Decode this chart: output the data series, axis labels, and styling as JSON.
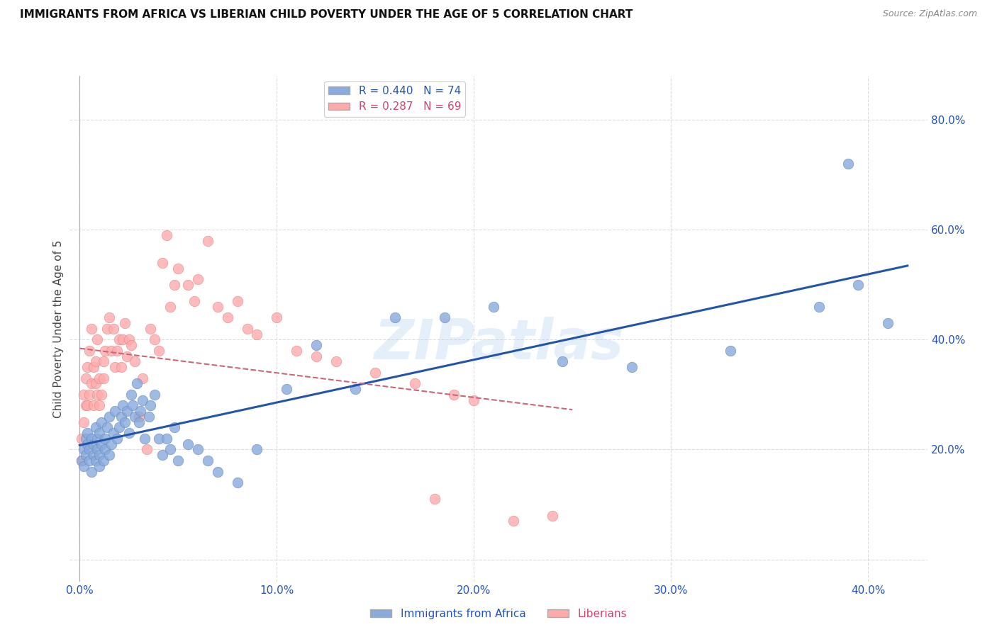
{
  "title": "IMMIGRANTS FROM AFRICA VS LIBERIAN CHILD POVERTY UNDER THE AGE OF 5 CORRELATION CHART",
  "source": "Source: ZipAtlas.com",
  "ylabel": "Child Poverty Under the Age of 5",
  "y_ticks": [
    0.0,
    0.2,
    0.4,
    0.6,
    0.8
  ],
  "y_tick_labels": [
    "",
    "20.0%",
    "40.0%",
    "60.0%",
    "80.0%"
  ],
  "x_ticks": [
    0.0,
    0.1,
    0.2,
    0.3,
    0.4
  ],
  "x_tick_labels": [
    "0.0%",
    "10.0%",
    "20.0%",
    "30.0%",
    "40.0%"
  ],
  "xlim": [
    -0.005,
    0.43
  ],
  "ylim": [
    -0.04,
    0.88
  ],
  "blue_color": "#88AADD",
  "blue_edge": "#6688BB",
  "pink_color": "#FFAAAA",
  "pink_edge": "#DD8888",
  "line_blue": "#2255AA",
  "line_pink": "#CC6677",
  "legend_label_blue": "Immigrants from Africa",
  "legend_label_pink": "Liberians",
  "R_blue": 0.44,
  "N_blue": 74,
  "R_pink": 0.287,
  "N_pink": 69,
  "blue_x": [
    0.001,
    0.002,
    0.002,
    0.003,
    0.003,
    0.004,
    0.004,
    0.005,
    0.005,
    0.006,
    0.006,
    0.007,
    0.007,
    0.008,
    0.008,
    0.009,
    0.009,
    0.01,
    0.01,
    0.01,
    0.011,
    0.011,
    0.012,
    0.013,
    0.013,
    0.014,
    0.015,
    0.015,
    0.016,
    0.017,
    0.018,
    0.019,
    0.02,
    0.021,
    0.022,
    0.023,
    0.024,
    0.025,
    0.026,
    0.027,
    0.028,
    0.029,
    0.03,
    0.031,
    0.032,
    0.033,
    0.035,
    0.036,
    0.038,
    0.04,
    0.042,
    0.044,
    0.046,
    0.048,
    0.05,
    0.055,
    0.06,
    0.065,
    0.07,
    0.08,
    0.09,
    0.105,
    0.12,
    0.14,
    0.16,
    0.185,
    0.21,
    0.245,
    0.28,
    0.33,
    0.375,
    0.395,
    0.41,
    0.39
  ],
  "blue_y": [
    0.18,
    0.2,
    0.17,
    0.22,
    0.19,
    0.21,
    0.23,
    0.18,
    0.2,
    0.22,
    0.16,
    0.19,
    0.21,
    0.24,
    0.18,
    0.2,
    0.22,
    0.17,
    0.19,
    0.23,
    0.21,
    0.25,
    0.18,
    0.2,
    0.22,
    0.24,
    0.19,
    0.26,
    0.21,
    0.23,
    0.27,
    0.22,
    0.24,
    0.26,
    0.28,
    0.25,
    0.27,
    0.23,
    0.3,
    0.28,
    0.26,
    0.32,
    0.25,
    0.27,
    0.29,
    0.22,
    0.26,
    0.28,
    0.3,
    0.22,
    0.19,
    0.22,
    0.2,
    0.24,
    0.18,
    0.21,
    0.2,
    0.18,
    0.16,
    0.14,
    0.2,
    0.31,
    0.39,
    0.31,
    0.44,
    0.44,
    0.46,
    0.36,
    0.35,
    0.38,
    0.46,
    0.5,
    0.43,
    0.72
  ],
  "pink_x": [
    0.001,
    0.001,
    0.002,
    0.002,
    0.003,
    0.003,
    0.004,
    0.004,
    0.005,
    0.005,
    0.006,
    0.006,
    0.007,
    0.007,
    0.008,
    0.008,
    0.009,
    0.009,
    0.01,
    0.01,
    0.011,
    0.012,
    0.012,
    0.013,
    0.014,
    0.015,
    0.016,
    0.017,
    0.018,
    0.019,
    0.02,
    0.021,
    0.022,
    0.023,
    0.024,
    0.025,
    0.026,
    0.028,
    0.03,
    0.032,
    0.034,
    0.036,
    0.038,
    0.04,
    0.042,
    0.044,
    0.046,
    0.048,
    0.05,
    0.055,
    0.058,
    0.06,
    0.065,
    0.07,
    0.075,
    0.08,
    0.085,
    0.09,
    0.1,
    0.11,
    0.12,
    0.13,
    0.15,
    0.17,
    0.19,
    0.2,
    0.22,
    0.24,
    0.18
  ],
  "pink_y": [
    0.22,
    0.18,
    0.25,
    0.3,
    0.28,
    0.33,
    0.35,
    0.28,
    0.38,
    0.3,
    0.32,
    0.42,
    0.35,
    0.28,
    0.36,
    0.32,
    0.3,
    0.4,
    0.33,
    0.28,
    0.3,
    0.36,
    0.33,
    0.38,
    0.42,
    0.44,
    0.38,
    0.42,
    0.35,
    0.38,
    0.4,
    0.35,
    0.4,
    0.43,
    0.37,
    0.4,
    0.39,
    0.36,
    0.26,
    0.33,
    0.2,
    0.42,
    0.4,
    0.38,
    0.54,
    0.59,
    0.46,
    0.5,
    0.53,
    0.5,
    0.47,
    0.51,
    0.58,
    0.46,
    0.44,
    0.47,
    0.42,
    0.41,
    0.44,
    0.38,
    0.37,
    0.36,
    0.34,
    0.32,
    0.3,
    0.29,
    0.07,
    0.08,
    0.11
  ],
  "watermark": "ZIPatlas",
  "background_color": "#ffffff",
  "grid_color": "#dddddd"
}
